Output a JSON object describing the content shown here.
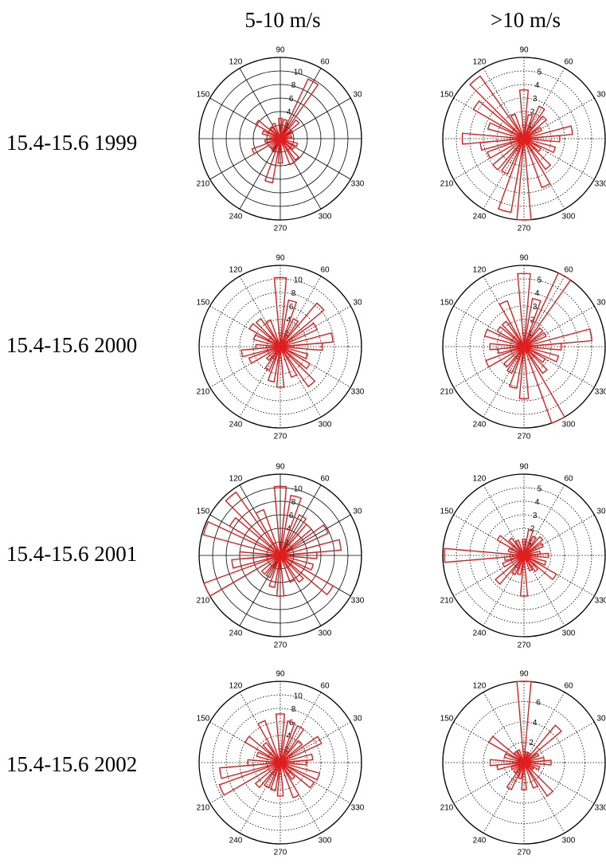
{
  "columns": [
    "5-10 m/s",
    ">10 m/s"
  ],
  "rows": [
    "15.4-15.6 1999",
    "15.4-15.6 2000",
    "15.4-15.6 2001",
    "15.4-15.6 2002"
  ],
  "colors": {
    "bars": "#dd1f1f",
    "axes": "#000000"
  },
  "chart_data": [
    {
      "type": "rose",
      "row": "15.4-15.6 1999",
      "column": "5-10 m/s",
      "rmax": 10,
      "ring_labels": [
        "2",
        "4",
        "6",
        "8",
        "10"
      ],
      "grid_style": "solid",
      "angles": [
        "90",
        "60",
        "30",
        "330",
        "300",
        "270",
        "240",
        "210",
        "150",
        "120"
      ],
      "sectors": [
        {
          "from": 85,
          "to": 95,
          "value": 2.5
        },
        {
          "from": 70,
          "to": 80,
          "value": 2.4
        },
        {
          "from": 55,
          "to": 65,
          "value": 8.1
        },
        {
          "from": 40,
          "to": 50,
          "value": 3.0
        },
        {
          "from": 25,
          "to": 35,
          "value": 1.7
        },
        {
          "from": 5,
          "to": 15,
          "value": 1.4
        },
        {
          "from": -5,
          "to": 5,
          "value": 0.8
        },
        {
          "from": 335,
          "to": 345,
          "value": 2.2
        },
        {
          "from": 320,
          "to": 330,
          "value": 2.0
        },
        {
          "from": 305,
          "to": 315,
          "value": 3.2
        },
        {
          "from": 290,
          "to": 300,
          "value": 3.4
        },
        {
          "from": 265,
          "to": 275,
          "value": 3.0
        },
        {
          "from": 250,
          "to": 260,
          "value": 5.5
        },
        {
          "from": 235,
          "to": 245,
          "value": 1.8
        },
        {
          "from": 220,
          "to": 230,
          "value": 1.6
        },
        {
          "from": 200,
          "to": 210,
          "value": 3.7
        },
        {
          "from": 185,
          "to": 195,
          "value": 1.9
        },
        {
          "from": 175,
          "to": 185,
          "value": 1.3
        },
        {
          "from": 155,
          "to": 165,
          "value": 2.3
        },
        {
          "from": 140,
          "to": 150,
          "value": 3.5
        },
        {
          "from": 125,
          "to": 135,
          "value": 1.8
        },
        {
          "from": 110,
          "to": 120,
          "value": 2.0
        }
      ]
    },
    {
      "type": "rose",
      "row": "15.4-15.6 1999",
      "column": ">10 m/s",
      "rmax": 5,
      "ring_labels": [
        "1",
        "2",
        "3",
        "4",
        "5"
      ],
      "grid_style": "dotted",
      "angles": [
        "90",
        "60",
        "30",
        "330",
        "300",
        "270",
        "240",
        "210",
        "150",
        "120"
      ],
      "sectors": [
        {
          "from": 85,
          "to": 95,
          "value": 3.0
        },
        {
          "from": 70,
          "to": 80,
          "value": 1.5
        },
        {
          "from": 55,
          "to": 65,
          "value": 2.2
        },
        {
          "from": 40,
          "to": 50,
          "value": 1.8
        },
        {
          "from": 25,
          "to": 35,
          "value": 1.2
        },
        {
          "from": 5,
          "to": 15,
          "value": 3.0
        },
        {
          "from": -5,
          "to": 5,
          "value": 2.2
        },
        {
          "from": 335,
          "to": 345,
          "value": 2.0
        },
        {
          "from": 320,
          "to": 330,
          "value": 1.2
        },
        {
          "from": 305,
          "to": 315,
          "value": 2.3
        },
        {
          "from": 290,
          "to": 300,
          "value": 3.2
        },
        {
          "from": 265,
          "to": 275,
          "value": 5.0
        },
        {
          "from": 250,
          "to": 260,
          "value": 4.6
        },
        {
          "from": 235,
          "to": 245,
          "value": 2.4
        },
        {
          "from": 220,
          "to": 230,
          "value": 2.5
        },
        {
          "from": 200,
          "to": 210,
          "value": 2.4
        },
        {
          "from": 185,
          "to": 195,
          "value": 2.7
        },
        {
          "from": 175,
          "to": 185,
          "value": 3.8
        },
        {
          "from": 155,
          "to": 165,
          "value": 2.3
        },
        {
          "from": 140,
          "to": 150,
          "value": 3.6
        },
        {
          "from": 125,
          "to": 135,
          "value": 4.7
        },
        {
          "from": 110,
          "to": 120,
          "value": 1.6
        }
      ]
    },
    {
      "type": "rose",
      "row": "15.4-15.6 2000",
      "column": "5-10 m/s",
      "rmax": 10,
      "ring_labels": [
        "2",
        "4",
        "6",
        "8",
        "10"
      ],
      "grid_style": "dotted",
      "angles": [
        "90",
        "60",
        "30",
        "330",
        "300",
        "270",
        "240",
        "210",
        "150",
        "120"
      ],
      "sectors": [
        {
          "from": 85,
          "to": 95,
          "value": 8.5
        },
        {
          "from": 70,
          "to": 80,
          "value": 5.8
        },
        {
          "from": 55,
          "to": 65,
          "value": 3.8
        },
        {
          "from": 40,
          "to": 50,
          "value": 7.0
        },
        {
          "from": 25,
          "to": 35,
          "value": 5.0
        },
        {
          "from": 5,
          "to": 15,
          "value": 6.5
        },
        {
          "from": -5,
          "to": 5,
          "value": 5.2
        },
        {
          "from": 335,
          "to": 345,
          "value": 3.5
        },
        {
          "from": 320,
          "to": 330,
          "value": 4.2
        },
        {
          "from": 305,
          "to": 315,
          "value": 6.0
        },
        {
          "from": 290,
          "to": 300,
          "value": 4.0
        },
        {
          "from": 265,
          "to": 275,
          "value": 5.0
        },
        {
          "from": 250,
          "to": 260,
          "value": 4.4
        },
        {
          "from": 235,
          "to": 245,
          "value": 3.2
        },
        {
          "from": 220,
          "to": 230,
          "value": 2.2
        },
        {
          "from": 200,
          "to": 210,
          "value": 4.1
        },
        {
          "from": 185,
          "to": 195,
          "value": 4.8
        },
        {
          "from": 175,
          "to": 185,
          "value": 3.0
        },
        {
          "from": 155,
          "to": 165,
          "value": 3.4
        },
        {
          "from": 140,
          "to": 150,
          "value": 4.4
        },
        {
          "from": 125,
          "to": 135,
          "value": 4.2
        },
        {
          "from": 110,
          "to": 120,
          "value": 3.5
        }
      ]
    },
    {
      "type": "rose",
      "row": "15.4-15.6 2000",
      "column": ">10 m/s",
      "rmax": 5,
      "ring_labels": [
        "1",
        "2",
        "3",
        "4",
        "5"
      ],
      "grid_style": "dotted",
      "angles": [
        "90",
        "60",
        "30",
        "330",
        "300",
        "270",
        "240",
        "210",
        "150",
        "120"
      ],
      "sectors": [
        {
          "from": 85,
          "to": 95,
          "value": 4.5
        },
        {
          "from": 70,
          "to": 80,
          "value": 3.0
        },
        {
          "from": 55,
          "to": 65,
          "value": 5.0
        },
        {
          "from": 40,
          "to": 50,
          "value": 1.5
        },
        {
          "from": 25,
          "to": 35,
          "value": 1.5
        },
        {
          "from": 5,
          "to": 15,
          "value": 4.2
        },
        {
          "from": -5,
          "to": 5,
          "value": 2.3
        },
        {
          "from": 335,
          "to": 345,
          "value": 2.2
        },
        {
          "from": 320,
          "to": 330,
          "value": 1.5
        },
        {
          "from": 305,
          "to": 315,
          "value": 2.0
        },
        {
          "from": 290,
          "to": 300,
          "value": 5.0
        },
        {
          "from": 265,
          "to": 275,
          "value": 3.2
        },
        {
          "from": 250,
          "to": 260,
          "value": 2.6
        },
        {
          "from": 235,
          "to": 245,
          "value": 1.8
        },
        {
          "from": 220,
          "to": 230,
          "value": 1.6
        },
        {
          "from": 200,
          "to": 210,
          "value": 2.5
        },
        {
          "from": 185,
          "to": 195,
          "value": 1.6
        },
        {
          "from": 175,
          "to": 185,
          "value": 2.1
        },
        {
          "from": 155,
          "to": 165,
          "value": 2.5
        },
        {
          "from": 140,
          "to": 150,
          "value": 1.9
        },
        {
          "from": 125,
          "to": 135,
          "value": 1.9
        },
        {
          "from": 110,
          "to": 120,
          "value": 3.0
        }
      ]
    },
    {
      "type": "rose",
      "row": "15.4-15.6 2001",
      "column": "5-10 m/s",
      "rmax": 10,
      "ring_labels": [
        "2",
        "4",
        "6",
        "8",
        "10"
      ],
      "grid_style": "solid",
      "angles": [
        "90",
        "60",
        "30",
        "330",
        "300",
        "270",
        "240",
        "210",
        "150",
        "120"
      ],
      "sectors": [
        {
          "from": 85,
          "to": 95,
          "value": 8.5
        },
        {
          "from": 70,
          "to": 80,
          "value": 7.5
        },
        {
          "from": 55,
          "to": 65,
          "value": 5.5
        },
        {
          "from": 40,
          "to": 50,
          "value": 5.0
        },
        {
          "from": 25,
          "to": 35,
          "value": 6.5
        },
        {
          "from": 5,
          "to": 15,
          "value": 7.5
        },
        {
          "from": -5,
          "to": 5,
          "value": 4.5
        },
        {
          "from": 335,
          "to": 345,
          "value": 4.2
        },
        {
          "from": 320,
          "to": 330,
          "value": 7.5
        },
        {
          "from": 305,
          "to": 315,
          "value": 4.0
        },
        {
          "from": 290,
          "to": 300,
          "value": 3.5
        },
        {
          "from": 265,
          "to": 275,
          "value": 5.0
        },
        {
          "from": 250,
          "to": 260,
          "value": 4.0
        },
        {
          "from": 235,
          "to": 245,
          "value": 3.0
        },
        {
          "from": 220,
          "to": 230,
          "value": 3.0
        },
        {
          "from": 200,
          "to": 210,
          "value": 10.0
        },
        {
          "from": 185,
          "to": 195,
          "value": 6.0
        },
        {
          "from": 175,
          "to": 185,
          "value": 5.0
        },
        {
          "from": 155,
          "to": 165,
          "value": 9.8
        },
        {
          "from": 140,
          "to": 150,
          "value": 7.2
        },
        {
          "from": 125,
          "to": 135,
          "value": 9.5
        },
        {
          "from": 110,
          "to": 120,
          "value": 6.0
        }
      ]
    },
    {
      "type": "rose",
      "row": "15.4-15.6 2001",
      "column": ">10 m/s",
      "rmax": 5,
      "ring_labels": [
        "1",
        "2",
        "3",
        "4",
        "5"
      ],
      "grid_style": "dotted",
      "angles": [
        "90",
        "60",
        "30",
        "330",
        "300",
        "270",
        "240",
        "210",
        "150",
        "120"
      ],
      "sectors": [
        {
          "from": 85,
          "to": 95,
          "value": 1.0
        },
        {
          "from": 70,
          "to": 80,
          "value": 1.6
        },
        {
          "from": 55,
          "to": 65,
          "value": 1.3
        },
        {
          "from": 40,
          "to": 50,
          "value": 1.5
        },
        {
          "from": 25,
          "to": 35,
          "value": 1.3
        },
        {
          "from": 5,
          "to": 15,
          "value": 1.0
        },
        {
          "from": -5,
          "to": 5,
          "value": 1.5
        },
        {
          "from": 335,
          "to": 345,
          "value": 1.4
        },
        {
          "from": 320,
          "to": 330,
          "value": 2.3
        },
        {
          "from": 305,
          "to": 315,
          "value": 1.2
        },
        {
          "from": 290,
          "to": 300,
          "value": 1.0
        },
        {
          "from": 265,
          "to": 275,
          "value": 2.5
        },
        {
          "from": 250,
          "to": 260,
          "value": 1.2
        },
        {
          "from": 235,
          "to": 245,
          "value": 1.3
        },
        {
          "from": 220,
          "to": 230,
          "value": 2.3
        },
        {
          "from": 200,
          "to": 210,
          "value": 1.4
        },
        {
          "from": 185,
          "to": 195,
          "value": 1.2
        },
        {
          "from": 175,
          "to": 185,
          "value": 4.9
        },
        {
          "from": 155,
          "to": 165,
          "value": 1.0
        },
        {
          "from": 140,
          "to": 150,
          "value": 1.9
        },
        {
          "from": 125,
          "to": 135,
          "value": 1.3
        },
        {
          "from": 110,
          "to": 120,
          "value": 1.0
        }
      ]
    },
    {
      "type": "rose",
      "row": "15.4-15.6 2002",
      "column": "5-10 m/s",
      "rmax": 10,
      "ring_labels": [
        "2",
        "4",
        "6",
        "8",
        "10"
      ],
      "grid_style": "dotted",
      "angles": [
        "90",
        "60",
        "30",
        "330",
        "300",
        "270",
        "240",
        "210",
        "150",
        "120"
      ],
      "sectors": [
        {
          "from": 85,
          "to": 95,
          "value": 6.0
        },
        {
          "from": 70,
          "to": 80,
          "value": 5.2
        },
        {
          "from": 55,
          "to": 65,
          "value": 5.0
        },
        {
          "from": 40,
          "to": 50,
          "value": 3.5
        },
        {
          "from": 25,
          "to": 35,
          "value": 5.6
        },
        {
          "from": 5,
          "to": 15,
          "value": 4.0
        },
        {
          "from": -5,
          "to": 5,
          "value": 3.2
        },
        {
          "from": 335,
          "to": 345,
          "value": 5.0
        },
        {
          "from": 320,
          "to": 330,
          "value": 4.8
        },
        {
          "from": 305,
          "to": 315,
          "value": 2.5
        },
        {
          "from": 290,
          "to": 300,
          "value": 4.6
        },
        {
          "from": 265,
          "to": 275,
          "value": 4.1
        },
        {
          "from": 250,
          "to": 260,
          "value": 3.5
        },
        {
          "from": 235,
          "to": 245,
          "value": 3.4
        },
        {
          "from": 220,
          "to": 230,
          "value": 4.0
        },
        {
          "from": 200,
          "to": 210,
          "value": 8.0
        },
        {
          "from": 185,
          "to": 195,
          "value": 7.5
        },
        {
          "from": 175,
          "to": 185,
          "value": 4.0
        },
        {
          "from": 155,
          "to": 165,
          "value": 3.0
        },
        {
          "from": 140,
          "to": 150,
          "value": 5.0
        },
        {
          "from": 125,
          "to": 135,
          "value": 3.0
        },
        {
          "from": 110,
          "to": 120,
          "value": 5.5
        }
      ]
    },
    {
      "type": "rose",
      "row": "15.4-15.6 2002",
      "column": ">10 m/s",
      "rmax": 6,
      "ring_labels": [
        "2",
        "4",
        "6"
      ],
      "grid_style": "dotted",
      "angles": [
        "90",
        "60",
        "30",
        "330",
        "300",
        "270",
        "240",
        "210",
        "150",
        "120"
      ],
      "sectors": [
        {
          "from": 85,
          "to": 95,
          "value": 6.0
        },
        {
          "from": 70,
          "to": 80,
          "value": 0.8
        },
        {
          "from": 55,
          "to": 65,
          "value": 0.8
        },
        {
          "from": 40,
          "to": 50,
          "value": 3.6
        },
        {
          "from": 25,
          "to": 35,
          "value": 1.2
        },
        {
          "from": 5,
          "to": 15,
          "value": 1.5
        },
        {
          "from": -5,
          "to": 5,
          "value": 2.0
        },
        {
          "from": 335,
          "to": 345,
          "value": 1.2
        },
        {
          "from": 320,
          "to": 330,
          "value": 0.8
        },
        {
          "from": 305,
          "to": 315,
          "value": 3.0
        },
        {
          "from": 290,
          "to": 300,
          "value": 2.0
        },
        {
          "from": 265,
          "to": 275,
          "value": 2.0
        },
        {
          "from": 250,
          "to": 260,
          "value": 1.2
        },
        {
          "from": 235,
          "to": 245,
          "value": 2.2
        },
        {
          "from": 220,
          "to": 230,
          "value": 1.0
        },
        {
          "from": 200,
          "to": 210,
          "value": 1.0
        },
        {
          "from": 185,
          "to": 195,
          "value": 2.0
        },
        {
          "from": 175,
          "to": 185,
          "value": 2.5
        },
        {
          "from": 155,
          "to": 165,
          "value": 1.5
        },
        {
          "from": 140,
          "to": 150,
          "value": 3.0
        },
        {
          "from": 125,
          "to": 135,
          "value": 1.0
        },
        {
          "from": 110,
          "to": 120,
          "value": 1.0
        }
      ]
    }
  ]
}
